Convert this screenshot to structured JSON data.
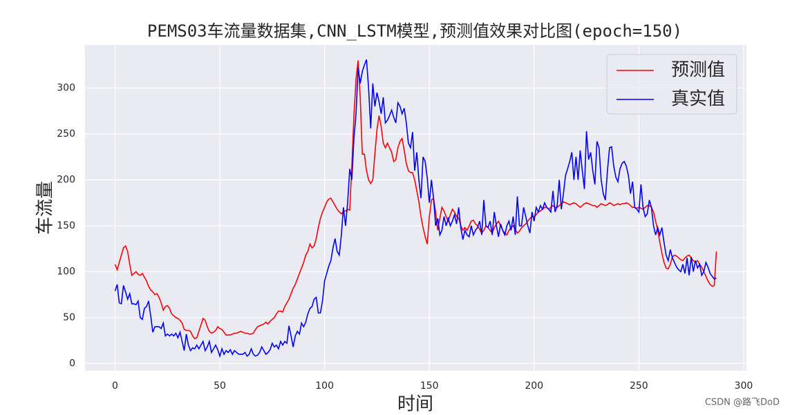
{
  "chart_data": {
    "type": "line",
    "title": "PEMS03车流量数据集,CNN_LSTM模型,预测值效果对比图(epoch=150)",
    "xlabel": "时间",
    "ylabel": "车流量",
    "watermark": "CSDN @路飞DoD",
    "x": [
      0,
      1,
      2,
      3,
      4,
      5,
      6,
      7,
      8,
      9,
      10,
      11,
      12,
      13,
      14,
      15,
      16,
      17,
      18,
      19,
      20,
      21,
      22,
      23,
      24,
      25,
      26,
      27,
      28,
      29,
      30,
      31,
      32,
      33,
      34,
      35,
      36,
      37,
      38,
      39,
      40,
      41,
      42,
      43,
      44,
      45,
      46,
      47,
      48,
      49,
      50,
      51,
      52,
      53,
      54,
      55,
      56,
      57,
      58,
      59,
      60,
      61,
      62,
      63,
      64,
      65,
      66,
      67,
      68,
      69,
      70,
      71,
      72,
      73,
      74,
      75,
      76,
      77,
      78,
      79,
      80,
      81,
      82,
      83,
      84,
      85,
      86,
      87,
      88,
      89,
      90,
      91,
      92,
      93,
      94,
      95,
      96,
      97,
      98,
      99,
      100,
      101,
      102,
      103,
      104,
      105,
      106,
      107,
      108,
      109,
      110,
      111,
      112,
      113,
      114,
      115,
      116,
      117,
      118,
      119,
      120,
      121,
      122,
      123,
      124,
      125,
      126,
      127,
      128,
      129,
      130,
      131,
      132,
      133,
      134,
      135,
      136,
      137,
      138,
      139,
      140,
      141,
      142,
      143,
      144,
      145,
      146,
      147,
      148,
      149,
      150,
      151,
      152,
      153,
      154,
      155,
      156,
      157,
      158,
      159,
      160,
      161,
      162,
      163,
      164,
      165,
      166,
      167,
      168,
      169,
      170,
      171,
      172,
      173,
      174,
      175,
      176,
      177,
      178,
      179,
      180,
      181,
      182,
      183,
      184,
      185,
      186,
      187,
      188,
      189,
      190,
      191,
      192,
      193,
      194,
      195,
      196,
      197,
      198,
      199,
      200,
      201,
      202,
      203,
      204,
      205,
      206,
      207,
      208,
      209,
      210,
      211,
      212,
      213,
      214,
      215,
      216,
      217,
      218,
      219,
      220,
      221,
      222,
      223,
      224,
      225,
      226,
      227,
      228,
      229,
      230,
      231,
      232,
      233,
      234,
      235,
      236,
      237,
      238,
      239,
      240,
      241,
      242,
      243,
      244,
      245,
      246,
      247,
      248,
      249,
      250,
      251,
      252,
      253,
      254,
      255,
      256,
      257,
      258,
      259,
      260,
      261,
      262,
      263,
      264,
      265,
      266,
      267,
      268,
      269,
      270,
      271,
      272,
      273,
      274,
      275,
      276,
      277,
      278,
      279,
      280,
      281,
      282,
      283,
      284,
      285,
      286,
      287
    ],
    "series": [
      {
        "name": "预测值",
        "color": "#ff0000",
        "values": [
          108,
          102,
          110,
          118,
          126,
          128,
          122,
          108,
          96,
          98,
          100,
          97,
          96,
          98,
          94,
          90,
          84,
          80,
          78,
          75,
          76,
          72,
          66,
          58,
          62,
          63,
          60,
          54,
          52,
          50,
          49,
          47,
          44,
          37,
          36,
          36,
          35,
          30,
          27,
          28,
          35,
          42,
          49,
          47,
          40,
          35,
          33,
          34,
          36,
          40,
          38,
          37,
          34,
          31,
          31,
          31,
          32,
          33,
          33,
          34,
          35,
          34,
          33,
          33,
          32,
          32,
          33,
          37,
          40,
          41,
          42,
          43,
          45,
          43,
          46,
          48,
          50,
          54,
          57,
          57,
          56,
          62,
          66,
          70,
          76,
          82,
          86,
          92,
          98,
          104,
          110,
          118,
          122,
          130,
          126,
          128,
          136,
          148,
          158,
          165,
          170,
          176,
          179,
          180,
          176,
          172,
          168,
          165,
          163,
          166,
          166,
          168,
          167,
          215,
          270,
          310,
          330,
          290,
          228,
          228,
          210,
          200,
          196,
          200,
          228,
          255,
          270,
          258,
          240,
          235,
          240,
          235,
          230,
          220,
          222,
          235,
          242,
          245,
          232,
          218,
          210,
          208,
          208,
          200,
          188,
          176,
          160,
          148,
          138,
          130,
          160,
          178,
          180,
          165,
          145,
          158,
          170,
          166,
          160,
          155,
          162,
          168,
          165,
          160,
          158,
          150,
          145,
          148,
          145,
          150,
          155,
          156,
          152,
          150,
          146,
          142,
          145,
          150,
          148,
          145,
          142,
          148,
          152,
          155,
          150,
          145,
          142,
          140,
          145,
          148,
          150,
          146,
          142,
          144,
          148,
          150,
          152,
          155,
          158,
          160,
          160,
          162,
          165,
          166,
          168,
          170,
          170,
          168,
          170,
          172,
          170,
          170,
          172,
          174,
          176,
          175,
          174,
          173,
          174,
          175,
          174,
          172,
          170,
          172,
          174,
          175,
          174,
          173,
          172,
          172,
          170,
          172,
          174,
          173,
          172,
          173,
          175,
          174,
          172,
          173,
          174,
          173,
          174,
          174,
          175,
          174,
          172,
          170,
          170,
          169,
          170,
          169,
          168,
          170,
          172,
          172,
          170,
          165,
          155,
          145,
          132,
          120,
          110,
          104,
          103,
          108,
          116,
          118,
          117,
          115,
          113,
          112,
          115,
          117,
          118,
          115,
          112,
          110,
          112,
          108,
          105,
          100,
          95,
          90,
          86,
          84,
          85,
          122
        ]
      },
      {
        "name": "真实值",
        "color": "#0000ff",
        "values": [
          79,
          86,
          66,
          65,
          85,
          78,
          70,
          76,
          65,
          65,
          64,
          68,
          50,
          48,
          60,
          62,
          68,
          52,
          34,
          40,
          40,
          40,
          38,
          44,
          30,
          32,
          30,
          32,
          30,
          33,
          28,
          34,
          24,
          14,
          32,
          20,
          14,
          17,
          16,
          20,
          16,
          20,
          24,
          14,
          18,
          24,
          12,
          16,
          20,
          15,
          8,
          16,
          10,
          14,
          12,
          15,
          10,
          14,
          12,
          10,
          10,
          10,
          12,
          8,
          10,
          16,
          10,
          8,
          9,
          12,
          18,
          14,
          10,
          12,
          15,
          22,
          18,
          20,
          16,
          24,
          20,
          24,
          22,
          41,
          30,
          18,
          30,
          35,
          32,
          44,
          40,
          45,
          54,
          60,
          62,
          70,
          72,
          55,
          55,
          68,
          90,
          98,
          106,
          112,
          126,
          136,
          122,
          118,
          140,
          170,
          150,
          175,
          212,
          200,
          245,
          272,
          322,
          305,
          318,
          325,
          331,
          300,
          256,
          305,
          280,
          295,
          285,
          272,
          290,
          262,
          265,
          270,
          276,
          268,
          262,
          284,
          280,
          272,
          278,
          262,
          240,
          235,
          252,
          210,
          230,
          200,
          180,
          225,
          220,
          202,
          175,
          200,
          180,
          150,
          158,
          140,
          145,
          160,
          150,
          158,
          150,
          155,
          162,
          152,
          170,
          148,
          135,
          145,
          140,
          138,
          150,
          140,
          145,
          148,
          155,
          140,
          178,
          150,
          148,
          155,
          140,
          165,
          150,
          138,
          152,
          145,
          140,
          150,
          155,
          145,
          160,
          140,
          182,
          150,
          150,
          170,
          160,
          150,
          142,
          165,
          155,
          170,
          165,
          172,
          168,
          175,
          170,
          168,
          165,
          188,
          165,
          172,
          200,
          168,
          185,
          205,
          212,
          220,
          230,
          200,
          225,
          200,
          232,
          210,
          190,
          253,
          222,
          230,
          210,
          195,
          242,
          235,
          200,
          185,
          178,
          210,
          235,
          236,
          215,
          203,
          198,
          212,
          218,
          220,
          215,
          205,
          185,
          198,
          170,
          168,
          165,
          195,
          170,
          160,
          163,
          178,
          170,
          150,
          140,
          148,
          140,
          148,
          132,
          118,
          112,
          124,
          115,
          110,
          105,
          102,
          100,
          108,
          98,
          115,
          96,
          116,
          100,
          112,
          104,
          108,
          96,
          100,
          110,
          105,
          98,
          95,
          92,
          93
        ]
      }
    ],
    "xlim": [
      -14.35,
      301.35
    ],
    "xticks": [
      0,
      50,
      100,
      150,
      200,
      250,
      300
    ],
    "ylim": [
      -8,
      347
    ],
    "yticks": [
      0,
      50,
      100,
      150,
      200,
      250,
      300
    ],
    "grid": true,
    "legend": "upper right"
  }
}
